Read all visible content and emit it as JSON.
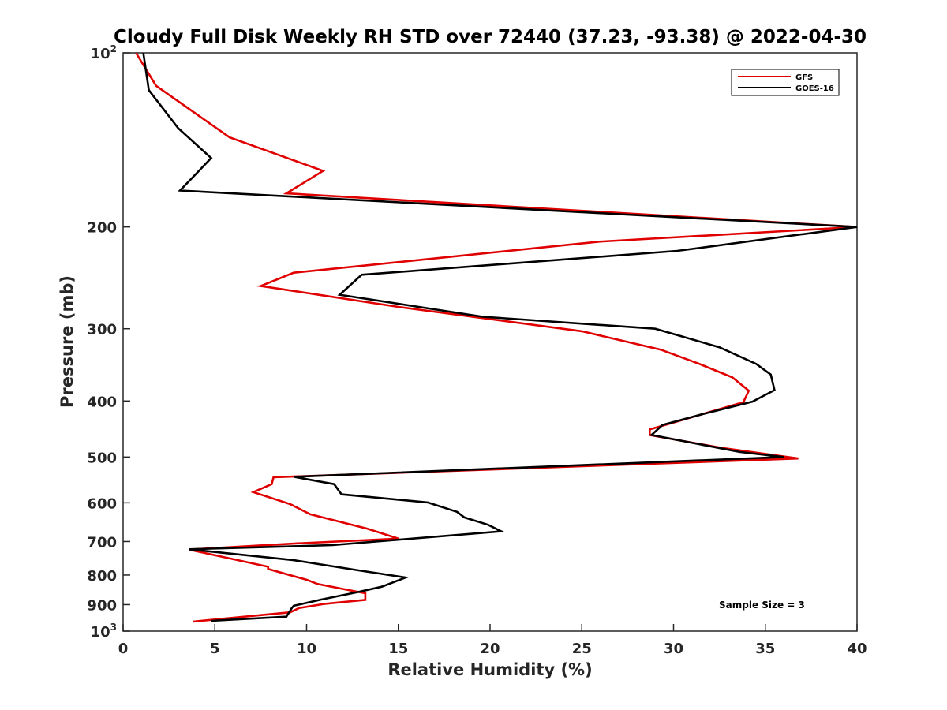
{
  "chart_data": {
    "type": "line",
    "title": "Cloudy Full Disk Weekly RH STD over 72440 (37.23, -93.38) @ 2022-04-30",
    "xlabel": "Relative Humidity (%)",
    "ylabel": "Pressure (mb)",
    "xlim": [
      0,
      40
    ],
    "ylim": [
      100,
      1000
    ],
    "y_scale": "log",
    "y_reversed": true,
    "x_ticks": [
      "0",
      "5",
      "10",
      "15",
      "20",
      "25",
      "30",
      "35",
      "40"
    ],
    "y_ticks": [
      {
        "base": "10",
        "exp": "2",
        "value": 100
      },
      {
        "base": "200",
        "exp": "",
        "value": 200
      },
      {
        "base": "300",
        "exp": "",
        "value": 300
      },
      {
        "base": "400",
        "exp": "",
        "value": 400
      },
      {
        "base": "500",
        "exp": "",
        "value": 500
      },
      {
        "base": "600",
        "exp": "",
        "value": 600
      },
      {
        "base": "700",
        "exp": "",
        "value": 700
      },
      {
        "base": "800",
        "exp": "",
        "value": 800
      },
      {
        "base": "900",
        "exp": "",
        "value": 900
      },
      {
        "base": "10",
        "exp": "3",
        "value": 1000
      }
    ],
    "legend_position": "top-right",
    "annotation": "Sample Size = 3",
    "series": [
      {
        "name": "GFS",
        "color": "#e00000",
        "points": [
          [
            0.7,
            100
          ],
          [
            1.8,
            114
          ],
          [
            5.8,
            140
          ],
          [
            10.9,
            160
          ],
          [
            8.9,
            175
          ],
          [
            40.0,
            200
          ],
          [
            26.0,
            212
          ],
          [
            9.3,
            240
          ],
          [
            7.5,
            253
          ],
          [
            15.0,
            275
          ],
          [
            25.0,
            303
          ],
          [
            29.3,
            326
          ],
          [
            31.4,
            345
          ],
          [
            33.2,
            364
          ],
          [
            34.1,
            384
          ],
          [
            33.8,
            402
          ],
          [
            28.7,
            448
          ],
          [
            28.7,
            458
          ],
          [
            32.6,
            482
          ],
          [
            36.8,
            503
          ],
          [
            8.2,
            542
          ],
          [
            8.1,
            557
          ],
          [
            7.1,
            575
          ],
          [
            9.1,
            603
          ],
          [
            10.2,
            628
          ],
          [
            13.3,
            665
          ],
          [
            15.0,
            692
          ],
          [
            9.6,
            705
          ],
          [
            7.1,
            712
          ],
          [
            3.6,
            723
          ],
          [
            7.9,
            774
          ],
          [
            7.9,
            781
          ],
          [
            10.0,
            815
          ],
          [
            10.6,
            829
          ],
          [
            12.6,
            853
          ],
          [
            13.2,
            860
          ],
          [
            13.2,
            883
          ],
          [
            11.0,
            897
          ],
          [
            9.6,
            912
          ],
          [
            9.1,
            928
          ],
          [
            3.8,
            963
          ]
        ]
      },
      {
        "name": "GOES-16",
        "color": "#000000",
        "points": [
          [
            1.1,
            100
          ],
          [
            1.4,
            116
          ],
          [
            3.0,
            135
          ],
          [
            4.8,
            152
          ],
          [
            3.1,
            173
          ],
          [
            40.0,
            200
          ],
          [
            30.2,
            220
          ],
          [
            13.0,
            242
          ],
          [
            11.8,
            262
          ],
          [
            19.6,
            286
          ],
          [
            29.0,
            300
          ],
          [
            32.5,
            323
          ],
          [
            34.5,
            345
          ],
          [
            35.3,
            360
          ],
          [
            35.5,
            383
          ],
          [
            34.3,
            401
          ],
          [
            31.4,
            423
          ],
          [
            29.4,
            440
          ],
          [
            28.8,
            458
          ],
          [
            33.6,
            490
          ],
          [
            36.0,
            500
          ],
          [
            9.3,
            541
          ],
          [
            11.5,
            557
          ],
          [
            11.9,
            580
          ],
          [
            16.6,
            599
          ],
          [
            18.2,
            622
          ],
          [
            18.6,
            636
          ],
          [
            19.9,
            655
          ],
          [
            20.6,
            672
          ],
          [
            11.4,
            710
          ],
          [
            3.6,
            722
          ],
          [
            9.3,
            754
          ],
          [
            12.8,
            785
          ],
          [
            15.4,
            808
          ],
          [
            14.1,
            838
          ],
          [
            12.8,
            856
          ],
          [
            10.8,
            882
          ],
          [
            9.3,
            904
          ],
          [
            9.2,
            912
          ],
          [
            8.9,
            944
          ],
          [
            4.8,
            960
          ]
        ]
      }
    ]
  }
}
